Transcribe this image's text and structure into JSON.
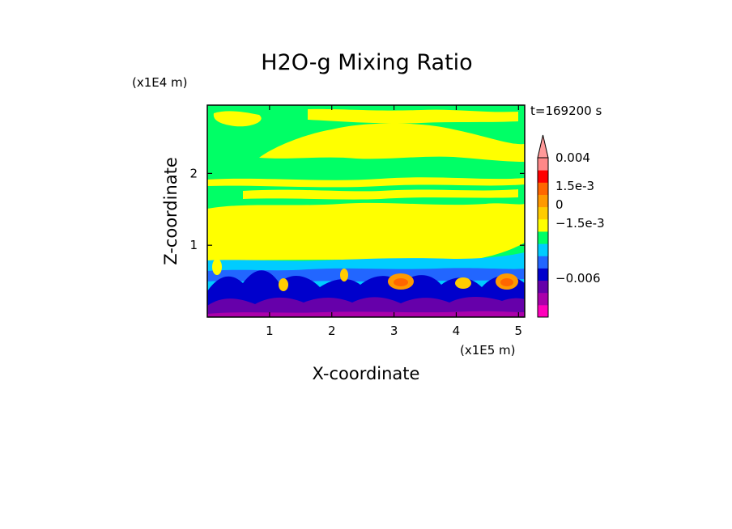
{
  "chart_data": {
    "type": "heatmap",
    "title": "H2O-g Mixing Ratio",
    "xlabel": "X-coordinate",
    "ylabel": "Z-coordinate",
    "x_unit": "(x1E5 m)",
    "y_unit": "(x1E4 m)",
    "time_label": "t=169200 s",
    "x_ticks": [
      "1",
      "2",
      "3",
      "4",
      "5"
    ],
    "x_tick_values": [
      1,
      2,
      3,
      4,
      5
    ],
    "y_ticks": [
      "1",
      "2"
    ],
    "y_tick_values": [
      1,
      2
    ],
    "xlim": [
      0.0,
      5.1
    ],
    "ylim": [
      0.0,
      2.95
    ],
    "grid": false,
    "colorbar": {
      "colors": [
        "#ff00bb",
        "#aa00aa",
        "#6600aa",
        "#0000cc",
        "#2266ff",
        "#00ccff",
        "#00ff66",
        "#ffff00",
        "#ffcc00",
        "#ff9900",
        "#ff6600",
        "#ff0000",
        "#ff8888"
      ],
      "top_color": "#ff9999",
      "labels": [
        "0.004",
        "1.5e-3",
        "0",
        "−1.5e-3",
        "−0.006"
      ]
    }
  }
}
